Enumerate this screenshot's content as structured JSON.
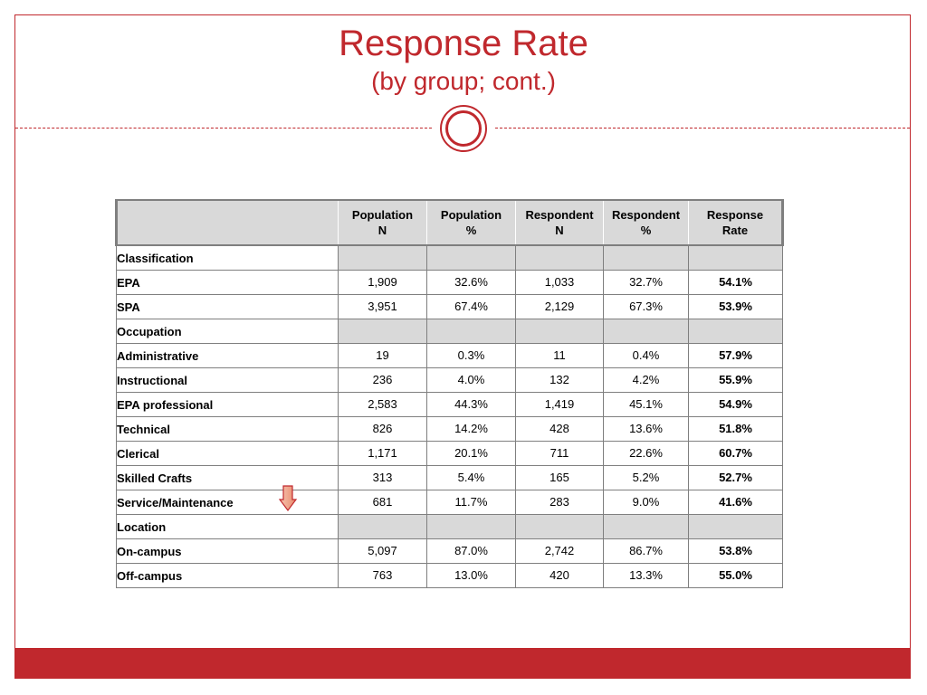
{
  "title": "Response Rate",
  "subtitle": "(by group; cont.)",
  "colors": {
    "accent": "#c0282d",
    "header_gray": "#d9d9d9"
  },
  "icons": {
    "ornament": "circle-ornament-icon",
    "arrow": "down-arrow-icon"
  },
  "table": {
    "headers": {
      "pop_n": [
        "Population",
        "N"
      ],
      "pop_pct": [
        "Population",
        "%"
      ],
      "resp_n": [
        "Respondent",
        "N"
      ],
      "resp_pct": [
        "Respondent",
        "%"
      ],
      "rate": [
        "Response",
        "Rate"
      ]
    },
    "sections": [
      {
        "label": "Classification",
        "rows": [
          {
            "label": "EPA",
            "pop_n": "1,909",
            "pop_pct": "32.6%",
            "resp_n": "1,033",
            "resp_pct": "32.7%",
            "rate": "54.1%"
          },
          {
            "label": "SPA",
            "pop_n": "3,951",
            "pop_pct": "67.4%",
            "resp_n": "2,129",
            "resp_pct": "67.3%",
            "rate": "53.9%"
          }
        ]
      },
      {
        "label": "Occupation",
        "rows": [
          {
            "label": "Administrative",
            "pop_n": "19",
            "pop_pct": "0.3%",
            "resp_n": "11",
            "resp_pct": "0.4%",
            "rate": "57.9%"
          },
          {
            "label": "Instructional",
            "pop_n": "236",
            "pop_pct": "4.0%",
            "resp_n": "132",
            "resp_pct": "4.2%",
            "rate": "55.9%"
          },
          {
            "label": "EPA professional",
            "pop_n": "2,583",
            "pop_pct": "44.3%",
            "resp_n": "1,419",
            "resp_pct": "45.1%",
            "rate": "54.9%"
          },
          {
            "label": "Technical",
            "pop_n": "826",
            "pop_pct": "14.2%",
            "resp_n": "428",
            "resp_pct": "13.6%",
            "rate": "51.8%"
          },
          {
            "label": "Clerical",
            "pop_n": "1,171",
            "pop_pct": "20.1%",
            "resp_n": "711",
            "resp_pct": "22.6%",
            "rate": "60.7%"
          },
          {
            "label": "Skilled Crafts",
            "pop_n": "313",
            "pop_pct": "5.4%",
            "resp_n": "165",
            "resp_pct": "5.2%",
            "rate": "52.7%"
          },
          {
            "label": "Service/Maintenance",
            "pop_n": "681",
            "pop_pct": "11.7%",
            "resp_n": "283",
            "resp_pct": "9.0%",
            "rate": "41.6%"
          }
        ]
      },
      {
        "label": "Location",
        "rows": [
          {
            "label": "On-campus",
            "pop_n": "5,097",
            "pop_pct": "87.0%",
            "resp_n": "2,742",
            "resp_pct": "86.7%",
            "rate": "53.8%"
          },
          {
            "label": "Off-campus",
            "pop_n": "763",
            "pop_pct": "13.0%",
            "resp_n": "420",
            "resp_pct": "13.3%",
            "rate": "55.0%"
          }
        ]
      }
    ]
  }
}
